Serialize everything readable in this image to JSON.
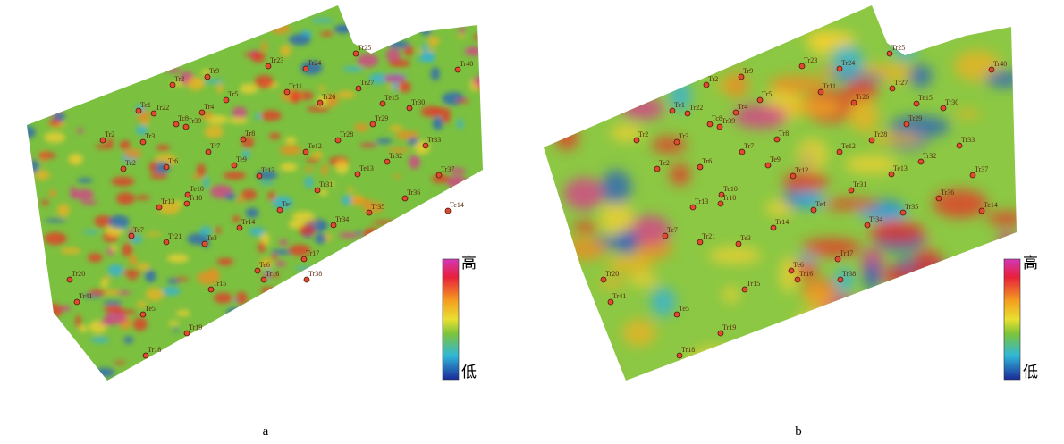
{
  "panels": [
    {
      "caption": "a",
      "legend": {
        "high": "高",
        "low": "低"
      },
      "wells": [
        "Tr25",
        "Tr23",
        "Tr24",
        "Tr40",
        "Tr9",
        "Tr2",
        "Tr27",
        "Tr11",
        "Tr5",
        "Tr26",
        "Te15",
        "Tr30",
        "Tc1",
        "Tr22",
        "Tr4",
        "Tc8",
        "Tr39",
        "Tr29",
        "Tr2",
        "Tr3",
        "Tr8",
        "Tr28",
        "Tr33",
        "Tr7",
        "Te12",
        "Tr32",
        "Te9",
        "Tc2",
        "Tr6",
        "Tr12",
        "Te13",
        "Tr37",
        "Tr31",
        "Tr36",
        "Te10",
        "Tr13",
        "Tr10",
        "Te4",
        "Te14",
        "Tr35",
        "Tr34",
        "Tr14",
        "Te7",
        "Tr21",
        "Te3",
        "Tr17",
        "Te6",
        "Tr16",
        "Tr38",
        "Tr20",
        "Tr15",
        "Tr41",
        "Te5",
        "Tr19",
        "Tr18"
      ]
    },
    {
      "caption": "b",
      "legend": {
        "high": "高",
        "low": "低"
      },
      "wells": [
        "Tr25",
        "Tr23",
        "Tr24",
        "Tr40",
        "Tr9",
        "Tr2",
        "Tr27",
        "Tr11",
        "Tr5",
        "Tr26",
        "Te15",
        "Tr30",
        "Tc1",
        "Tr22",
        "Tr4",
        "Tc8",
        "Tr39",
        "Tr29",
        "Tr2",
        "Tr3",
        "Tr8",
        "Tr28",
        "Tr33",
        "Tr7",
        "Te12",
        "Tr32",
        "Te9",
        "Tc2",
        "Tr6",
        "Tr12",
        "Te13",
        "Tr37",
        "Tr31",
        "Tr36",
        "Te10",
        "Tr13",
        "Tr10",
        "Te4",
        "Te14",
        "Tr35",
        "Tr34",
        "Tr14",
        "Te7",
        "Tr21",
        "Te3",
        "Tr17",
        "Te6",
        "Tr16",
        "Tr38",
        "Tr20",
        "Tr15",
        "Tr41",
        "Te5",
        "Tr19",
        "Tr18"
      ]
    }
  ]
}
